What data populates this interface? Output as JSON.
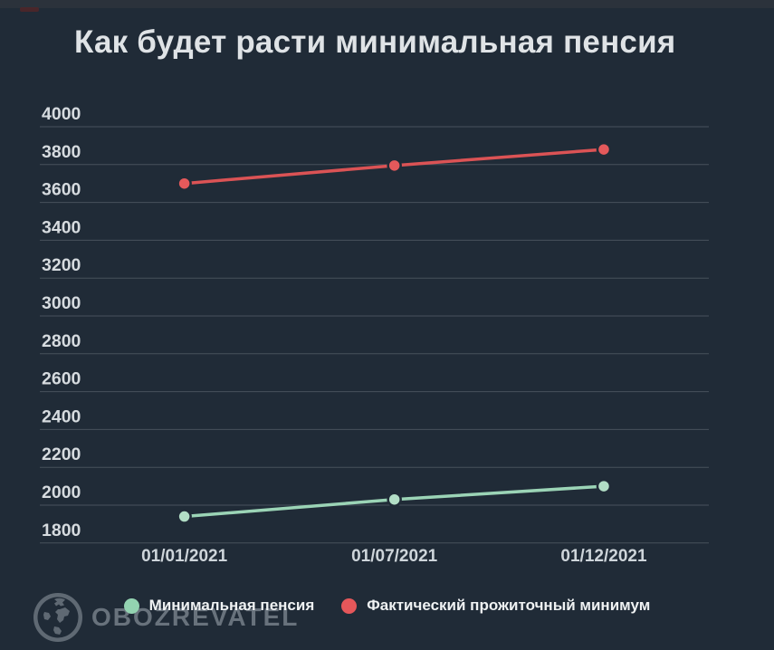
{
  "page": {
    "title": "Как будет расти минимальная пенсия"
  },
  "watermark": {
    "brand": "OBOZREVATEL"
  },
  "legend": {
    "items": [
      {
        "label": "Минимальная пенсия",
        "color": "#93d3b1"
      },
      {
        "label": "Фактический прожиточный минимум",
        "color": "#e5575a"
      }
    ]
  },
  "chart_data": {
    "type": "line",
    "title": "Как будет расти минимальная пенсия",
    "categories": [
      "01/01/2021",
      "01/07/2021",
      "01/12/2021"
    ],
    "series": [
      {
        "name": "Минимальная пенсия",
        "values": [
          1940,
          2030,
          2100
        ],
        "line_color": "#9bd4b6",
        "point_color": "#b2dec6"
      },
      {
        "name": "Фактический прожиточный минимум",
        "values": [
          3700,
          3795,
          3880
        ],
        "line_color": "#db5355",
        "point_color": "#e4595b"
      }
    ],
    "xlabel": "",
    "ylabel": "",
    "ylim": [
      1800,
      4000
    ],
    "ytick_step": 200,
    "grid": true,
    "legend_position": "bottom",
    "colors": {
      "background": "#202b37",
      "gridline": "#47525c",
      "y_tick_text": "#d6dbdf",
      "x_tick_text": "#ced5da"
    }
  }
}
